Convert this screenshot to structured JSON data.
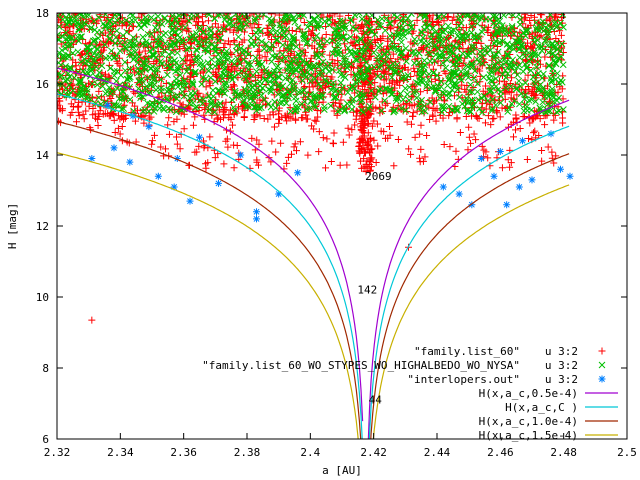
{
  "chart_data": {
    "type": "scatter",
    "title": "",
    "xlabel": "a [AU]",
    "ylabel": "H [mag]",
    "xlim": [
      2.32,
      2.5
    ],
    "ylim": [
      6,
      18
    ],
    "xticks": [
      "2.32",
      "2.34",
      "2.36",
      "2.38",
      "2.4",
      "2.42",
      "2.44",
      "2.46",
      "2.48",
      "2.5"
    ],
    "yticks": [
      "6",
      "8",
      "10",
      "12",
      "14",
      "16",
      "18"
    ],
    "grid": false,
    "legend_position": "bottom-right",
    "series": [
      {
        "name": "\"family.list_60\"",
        "using": "u 3:2",
        "marker": "plus",
        "color": "#ff0000",
        "summary": {
          "a_range": [
            2.32,
            2.48
          ],
          "H_range": [
            13.4,
            18.0
          ],
          "outliers": [
            [
              2.331,
              9.35
            ],
            [
              2.431,
              11.4
            ]
          ]
        }
      },
      {
        "name": "\"family.list_60_WO_STYPES_WO_HIGHALBEDO_WO_NYSA\"",
        "using": "u 3:2",
        "marker": "cross",
        "color": "#00c000",
        "summary": {
          "a_range": [
            2.32,
            2.48
          ],
          "H_range": [
            14.6,
            18.0
          ]
        }
      },
      {
        "name": "\"interlopers.out\"",
        "using": "u 3:2",
        "marker": "star",
        "color": "#0080ff",
        "points": [
          [
            2.331,
            13.9
          ],
          [
            2.338,
            14.2
          ],
          [
            2.343,
            13.8
          ],
          [
            2.352,
            13.4
          ],
          [
            2.357,
            13.1
          ],
          [
            2.362,
            12.7
          ],
          [
            2.358,
            13.9
          ],
          [
            2.371,
            13.2
          ],
          [
            2.383,
            12.2
          ],
          [
            2.383,
            12.4
          ],
          [
            2.39,
            12.9
          ],
          [
            2.396,
            13.5
          ],
          [
            2.344,
            15.1
          ],
          [
            2.336,
            15.4
          ],
          [
            2.349,
            14.8
          ],
          [
            2.365,
            14.5
          ],
          [
            2.378,
            14.0
          ],
          [
            2.442,
            13.1
          ],
          [
            2.447,
            12.9
          ],
          [
            2.451,
            12.6
          ],
          [
            2.458,
            13.4
          ],
          [
            2.462,
            12.6
          ],
          [
            2.466,
            13.1
          ],
          [
            2.47,
            13.3
          ],
          [
            2.476,
            14.6
          ],
          [
            2.479,
            13.6
          ],
          [
            2.482,
            13.4
          ],
          [
            2.46,
            14.1
          ],
          [
            2.454,
            13.9
          ],
          [
            2.467,
            14.4
          ]
        ]
      }
    ],
    "curves": [
      {
        "name": "H(x,a_c,0.5e-4)",
        "color": "#a000d0",
        "c": 5e-05
      },
      {
        "name": "H(x,a_c,C        )",
        "color": "#00c8d8",
        "c": 7e-05
      },
      {
        "name": "H(x,a_c,1.0e-4)",
        "color": "#a02800",
        "c": 0.0001
      },
      {
        "name": "H(x,a_c,1.5e-4)",
        "color": "#c8b000",
        "c": 0.00015
      }
    ],
    "a_c": 2.4175,
    "annotations": [
      {
        "text": "2069",
        "x": 2.4215,
        "y": 13.3
      },
      {
        "text": "142",
        "x": 2.418,
        "y": 10.1
      },
      {
        "text": "44",
        "x": 2.4205,
        "y": 7.0
      }
    ]
  }
}
